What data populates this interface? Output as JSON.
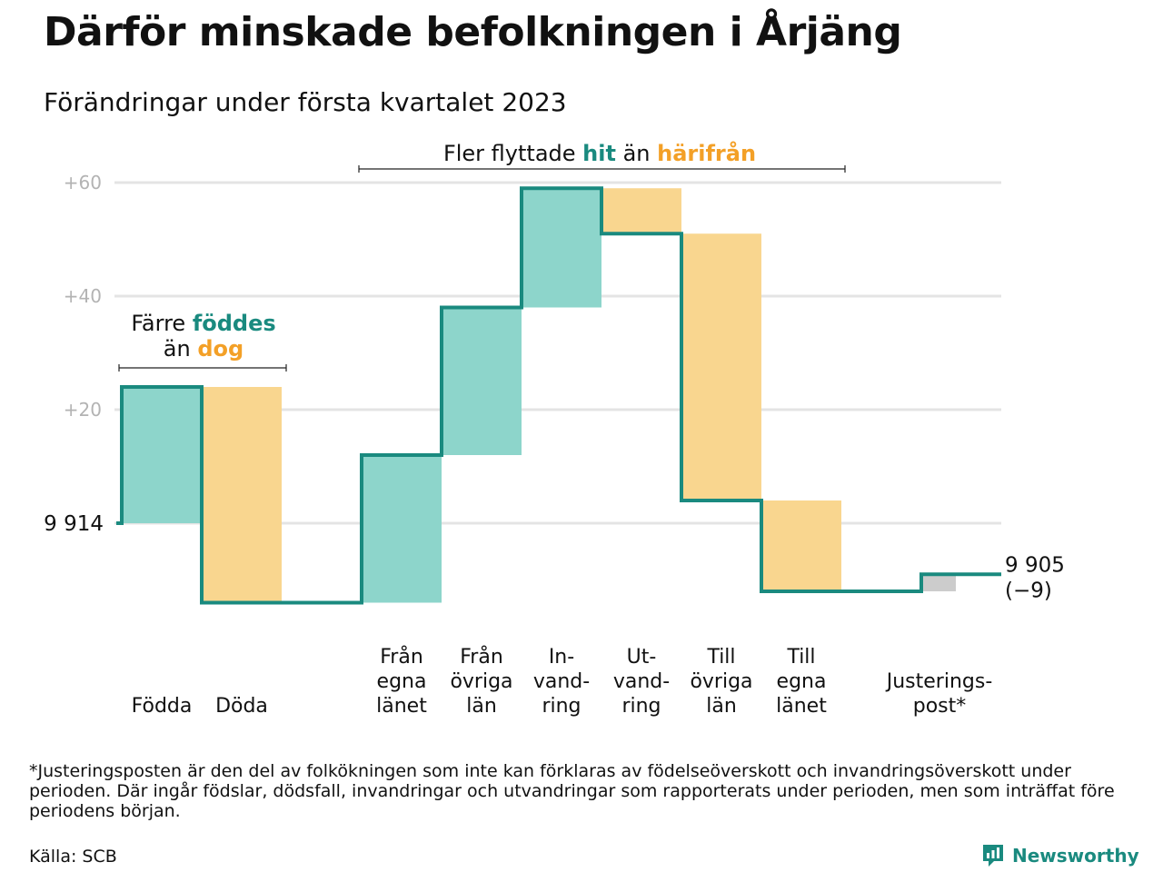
{
  "title": "Därför minskade befolkningen i Årjäng",
  "subtitle": "Förändringar under första kvartalet 2023",
  "colors": {
    "increase": "#8dd5cb",
    "decrease": "#f9d68f",
    "adjustment": "#cccccc",
    "line": "#1a8a7f",
    "grid": "#e4e4e4",
    "teal_text": "#1a8a7f",
    "orange_text": "#f3a027"
  },
  "chart_data": {
    "type": "waterfall",
    "start": {
      "label": "9 914",
      "value": 0
    },
    "end": {
      "label": "9 905",
      "change_label": "(−9)",
      "value": -9
    },
    "y_ticks": [
      {
        "value": 20,
        "label": "+20"
      },
      {
        "value": 40,
        "label": "+40"
      },
      {
        "value": 60,
        "label": "+60"
      }
    ],
    "ylim": [
      -20,
      62
    ],
    "steps": [
      {
        "label": [
          "Födda"
        ],
        "change": 24,
        "kind": "increase"
      },
      {
        "label": [
          "Döda"
        ],
        "change": -38,
        "kind": "decrease"
      },
      {
        "label": [
          "Från",
          "egna",
          "länet"
        ],
        "change": 26,
        "kind": "increase"
      },
      {
        "label": [
          "Från",
          "övriga",
          "län"
        ],
        "change": 26,
        "kind": "increase"
      },
      {
        "label": [
          "In-",
          "vand-",
          "ring"
        ],
        "change": 21,
        "kind": "increase"
      },
      {
        "label": [
          "Ut-",
          "vand-",
          "ring"
        ],
        "change": -8,
        "kind": "decrease"
      },
      {
        "label": [
          "Till",
          "övriga",
          "län"
        ],
        "change": -47,
        "kind": "decrease"
      },
      {
        "label": [
          "Till",
          "egna",
          "länet"
        ],
        "change": -16,
        "kind": "decrease"
      },
      {
        "label": [
          "Justerings-",
          "post*"
        ],
        "change": 3,
        "kind": "adjustment"
      }
    ],
    "annotations": [
      {
        "line1_parts": [
          "Färre ",
          "föddes"
        ],
        "line2_parts": [
          "än ",
          "dog"
        ]
      },
      {
        "line1_parts": [
          "Fler flyttade ",
          "hit",
          " än ",
          "härifrån"
        ]
      }
    ]
  },
  "footnote": "*Justeringsposten är den del av folkökningen som inte kan förklaras av födelseöverskott och invandringsöverskott under perioden. Där ingår födslar, dödsfall, invandringar och utvandringar som rapporterats under perioden, men som inträffat före periodens början.",
  "source": "Källa: SCB",
  "logo": {
    "text": "Newsworthy",
    "icon": "newsworthy-logo-icon"
  }
}
